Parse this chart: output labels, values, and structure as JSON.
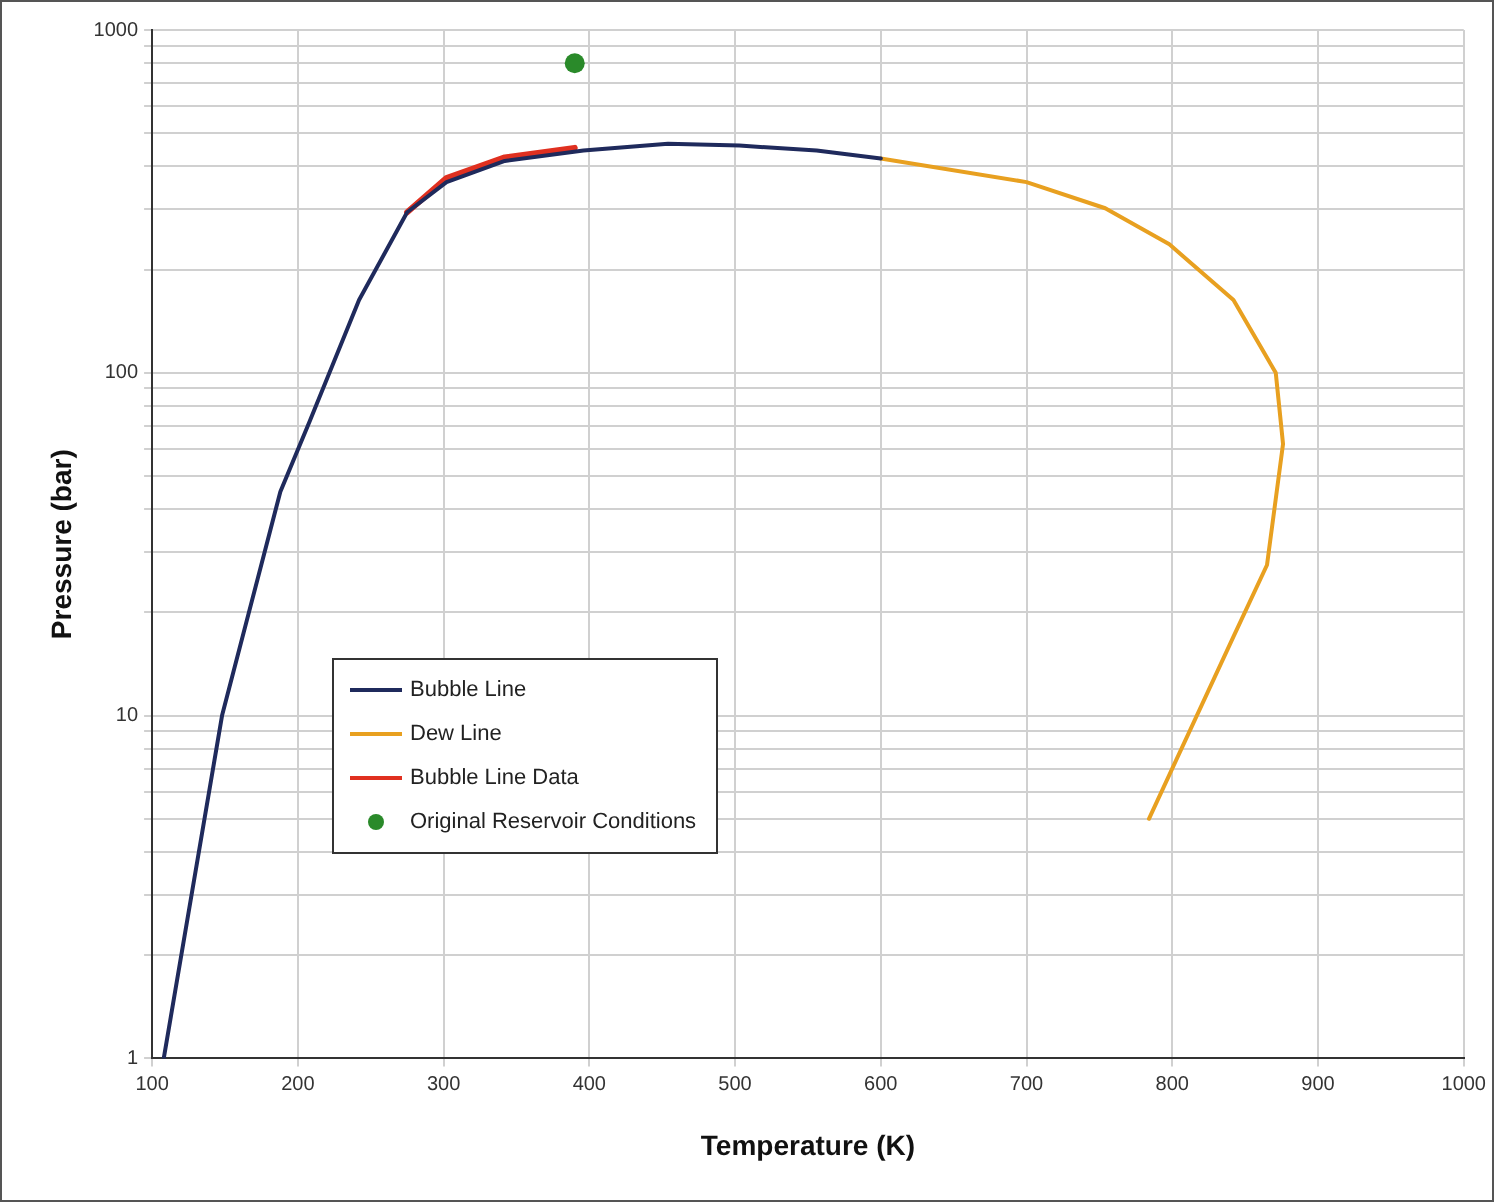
{
  "chart_data": {
    "type": "line",
    "xlabel": "Temperature (K)",
    "ylabel": "Pressure (bar)",
    "log": "y",
    "grid": true,
    "legend": "bottom left",
    "xlim": [
      100,
      1000
    ],
    "xticks": [
      100,
      200,
      300,
      400,
      500,
      600,
      700,
      800,
      900,
      1000
    ],
    "ylim": [
      1,
      1000
    ],
    "yticks": [
      1,
      {
        "value": 2,
        "label": null
      },
      {
        "value": 3,
        "label": null
      },
      {
        "value": 4,
        "label": null
      },
      {
        "value": 5,
        "label": null
      },
      {
        "value": 6,
        "label": null
      },
      {
        "value": 7,
        "label": null
      },
      {
        "value": 8,
        "label": null
      },
      {
        "value": 9,
        "label": null
      },
      10,
      {
        "value": 20,
        "label": null
      },
      {
        "value": 30,
        "label": null
      },
      {
        "value": 40,
        "label": null
      },
      {
        "value": 50,
        "label": null
      },
      {
        "value": 60,
        "label": null
      },
      {
        "value": 70,
        "label": null
      },
      {
        "value": 80,
        "label": null
      },
      {
        "value": 90,
        "label": null
      },
      100,
      {
        "value": 200,
        "label": null
      },
      {
        "value": 300,
        "label": null
      },
      {
        "value": 400,
        "label": null
      },
      {
        "value": 500,
        "label": null
      },
      {
        "value": 600,
        "label": null
      },
      {
        "value": 700,
        "label": null
      },
      {
        "value": 800,
        "label": null
      },
      {
        "value": 900,
        "label": null
      },
      1000
    ],
    "series": [
      {
        "name": "Bubble Line",
        "type": "line",
        "marker": "none",
        "color": "#1f2a5c",
        "x": [
          108,
          148,
          188,
          208,
          242,
          275,
          302,
          342,
          396,
          454,
          503,
          556,
          600
        ],
        "values": [
          1,
          10,
          45,
          72,
          163,
          294,
          360,
          415,
          445,
          466,
          460,
          445,
          422
        ]
      },
      {
        "name": "Dew Line",
        "type": "line",
        "marker": "none",
        "color": "#e8a020",
        "x": [
          600,
          700,
          754,
          798,
          842,
          871,
          876,
          865,
          842,
          784
        ],
        "values": [
          422,
          360,
          302,
          237,
          163,
          100,
          62,
          27.5,
          17,
          5
        ]
      },
      {
        "name": "Bubble Line Data",
        "type": "line",
        "marker": "none",
        "color": "#e03020",
        "x": [
          275,
          302,
          342,
          390
        ],
        "values": [
          294,
          370,
          425,
          453
        ]
      },
      {
        "name": "Original Reservoir Conditions",
        "type": "scatter",
        "marker": "circle",
        "color": "#2a8a2a",
        "x": [
          390
        ],
        "values": [
          800
        ]
      }
    ]
  }
}
